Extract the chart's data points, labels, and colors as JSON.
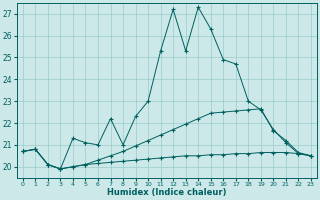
{
  "xlabel": "Humidex (Indice chaleur)",
  "x_values": [
    0,
    1,
    2,
    3,
    4,
    5,
    6,
    7,
    8,
    9,
    10,
    11,
    12,
    13,
    14,
    15,
    16,
    17,
    18,
    19,
    20,
    21,
    22,
    23
  ],
  "line1_y": [
    20.7,
    20.8,
    20.1,
    19.9,
    20.0,
    20.1,
    20.15,
    20.2,
    20.25,
    20.3,
    20.35,
    20.4,
    20.45,
    20.5,
    20.5,
    20.55,
    20.55,
    20.6,
    20.6,
    20.65,
    20.65,
    20.65,
    20.6,
    20.5
  ],
  "line2_y": [
    20.7,
    20.8,
    20.1,
    19.9,
    20.0,
    20.1,
    20.3,
    20.5,
    20.7,
    20.95,
    21.2,
    21.45,
    21.7,
    21.95,
    22.2,
    22.45,
    22.5,
    22.55,
    22.6,
    22.65,
    21.65,
    21.2,
    20.65,
    20.5
  ],
  "line3_y": [
    20.7,
    20.8,
    20.1,
    19.9,
    21.3,
    21.1,
    21.0,
    22.2,
    21.0,
    22.3,
    23.0,
    25.3,
    27.2,
    25.3,
    27.3,
    26.3,
    24.9,
    24.7,
    23.0,
    22.6,
    21.7,
    21.1,
    20.6,
    20.5
  ],
  "ylim": [
    19.5,
    27.5
  ],
  "xlim": [
    -0.5,
    23.5
  ],
  "yticks": [
    20,
    21,
    22,
    23,
    24,
    25,
    26,
    27
  ],
  "xticks": [
    0,
    1,
    2,
    3,
    4,
    5,
    6,
    7,
    8,
    9,
    10,
    11,
    12,
    13,
    14,
    15,
    16,
    17,
    18,
    19,
    20,
    21,
    22,
    23
  ],
  "line_color": "#005f5f",
  "bg_color": "#cce8e8",
  "grid_color": "#99cccc"
}
